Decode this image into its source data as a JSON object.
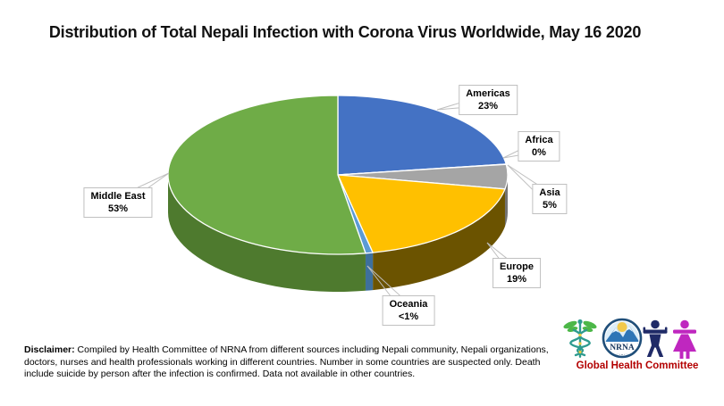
{
  "chart_data": {
    "type": "pie",
    "style": "pie-3d",
    "title": "Distribution of Total Nepali Infection with Corona Virus Worldwide, May 16 2020",
    "categories": [
      "Americas",
      "Africa",
      "Asia",
      "Europe",
      "Oceania",
      "Middle East"
    ],
    "values": [
      23,
      0.05,
      5,
      19,
      0.7,
      53
    ],
    "display_percent": [
      "23%",
      "0%",
      "5%",
      "19%",
      "<1%",
      "53%"
    ],
    "colors": [
      "#4472C4",
      "#ED7D31",
      "#A5A5A5",
      "#FFC000",
      "#5B9BD5",
      "#6FAC47"
    ],
    "side_colors": [
      "#2E4F88",
      "#A55520",
      "#737373",
      "#6B5300",
      "#3E709C",
      "#4E7A2E"
    ],
    "start_angle_deg": 0,
    "direction": "clockwise",
    "legend": "none",
    "labels": "category-and-percent-in-callout-boxes"
  },
  "disclaimer": {
    "label": "Disclaimer:",
    "text": "Compiled by Health Committee of NRNA from different sources including Nepali community, Nepali organizations, doctors, nurses and health professionals working in different countries. Number in some countries are suspected only. Death include suicide by person after the infection is confirmed. Data not available in other countries."
  },
  "logo": {
    "org_abbr": "NRNA",
    "committee": "Global Health Committee",
    "colors": {
      "committee_text": "#B30000",
      "male_figure": "#1F2A67",
      "female_figure": "#BF27BF",
      "caduceus_teal": "#2E9B8F",
      "caduceus_green": "#4CB748",
      "emblem_ring": "#1F4E79",
      "emblem_mountain": "#2E75B6",
      "emblem_sun": "#F2C94C"
    }
  }
}
